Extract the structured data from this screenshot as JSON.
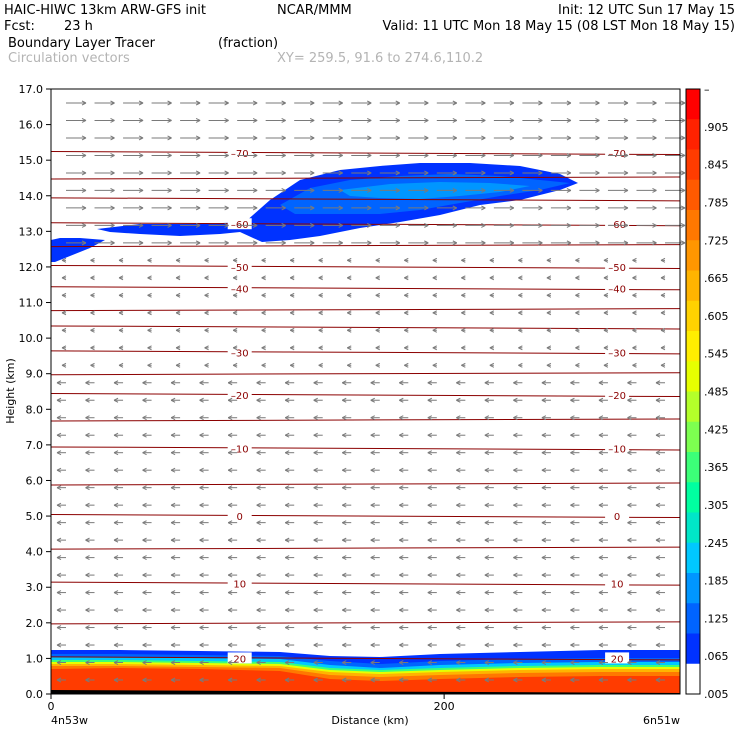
{
  "header": {
    "model": "HAIC-HIWC 13km ARW-GFS init",
    "center": "NCAR/MMM",
    "init": "Init: 12 UTC Sun 17 May 15",
    "fcst_label": "Fcst:",
    "fcst_value": "23 h",
    "valid": "Valid: 11 UTC Mon 18 May 15 (08 LST Mon 18 May 15)",
    "field": "Boundary Layer Tracer",
    "units": "(fraction)",
    "vectors": "Circulation vectors",
    "xy": "XY= 259.5, 91.6 to 274.6,110.2"
  },
  "chart_data": {
    "type": "heatmap",
    "ylabel": "Height (km)",
    "xlabel": "Distance (km)",
    "ylim": [
      0,
      17
    ],
    "xlim": [
      0,
      320
    ],
    "y_ticks": [
      "0.0",
      "1.0",
      "2.0",
      "3.0",
      "4.0",
      "5.0",
      "6.0",
      "7.0",
      "8.0",
      "9.0",
      "10.0",
      "11.0",
      "12.0",
      "13.0",
      "14.0",
      "15.0",
      "16.0",
      "17.0"
    ],
    "x_ticks": [
      {
        "value": 0,
        "label": "0"
      },
      {
        "value": 200,
        "label": "200"
      }
    ],
    "x_end_labels": {
      "left": "4n53w",
      "right": "6n51w"
    },
    "colorbar": {
      "labels": [
        "–",
        ".905",
        ".845",
        ".785",
        ".725",
        ".665",
        ".605",
        ".545",
        ".485",
        ".425",
        ".365",
        ".305",
        ".245",
        ".185",
        ".125",
        ".065",
        ".005"
      ],
      "colors": [
        "#ff0000",
        "#ff2200",
        "#ff3c00",
        "#ff5a00",
        "#ff7800",
        "#ff9600",
        "#ffb400",
        "#ffd200",
        "#ffee00",
        "#e6ff00",
        "#b4ff2a",
        "#7dff50",
        "#3cff78",
        "#00ffa0",
        "#00e6c8",
        "#00c8ff",
        "#0096ff",
        "#0064ff",
        "#0032ff",
        "#ffffff"
      ]
    },
    "temperature_contours": [
      {
        "label": "–70",
        "y": [
          15.2,
          14.5,
          13.9
        ]
      },
      {
        "label": "–60",
        "y": [
          13.2,
          12.6
        ]
      },
      {
        "label": "–50",
        "y": [
          12.0
        ]
      },
      {
        "label": "–40",
        "y": [
          11.4,
          10.8,
          10.3
        ]
      },
      {
        "label": "–30",
        "y": [
          9.6,
          9.0
        ]
      },
      {
        "label": "–20",
        "y": [
          8.4,
          7.7
        ]
      },
      {
        "label": "–10",
        "y": [
          6.9,
          5.9
        ]
      },
      {
        "label": "0",
        "y": [
          5.0,
          4.1
        ]
      },
      {
        "label": "10",
        "y": [
          3.1,
          2.0
        ]
      },
      {
        "label": "20",
        "y": [
          1.0
        ]
      }
    ]
  }
}
